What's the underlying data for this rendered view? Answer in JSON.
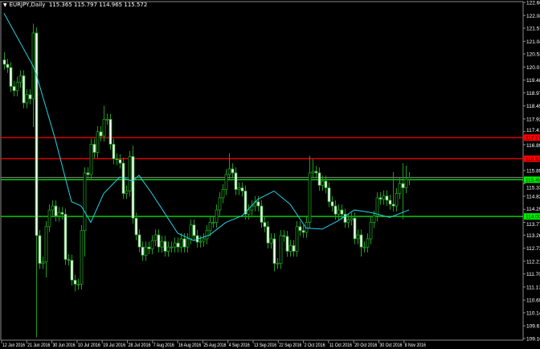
{
  "header": {
    "symbol_timeframe": "EURJPY,Daily",
    "ohlc_readout": "115.365 115.797 114.965 115.572",
    "menu_icon": "triangle-down-icon"
  },
  "colors": {
    "background": "#000000",
    "candle_outline": "#1f9a1f",
    "bull_body": "#000000",
    "bear_body": "#ffffff",
    "moving_average": "#22d3e6",
    "resistance": "#ff0000",
    "support": "#00ee00",
    "bid_line": "#9a9a9a",
    "axis_text": "#ffffff"
  },
  "chart_data": {
    "type": "candlestick",
    "title": "EURJPY,Daily",
    "ylim": [
      109.105,
      122.605
    ],
    "grid": false,
    "y_ticks": [
      "122.605",
      "122.080",
      "121.570",
      "121.045",
      "120.535",
      "120.010",
      "119.485",
      "118.975",
      "118.450",
      "117.925",
      "117.415",
      "116.890",
      "115.855",
      "115.330",
      "114.820",
      "114.295",
      "113.770",
      "113.260",
      "112.735",
      "112.210",
      "111.700",
      "111.175",
      "110.650",
      "110.140",
      "109.615",
      "109.105"
    ],
    "x_ticks": [
      "12 Jun 2016",
      "21 Jun 2016",
      "30 Jun 2016",
      "10 Jul 2016",
      "19 Jul 2016",
      "28 Jul 2016",
      "7 Aug 2016",
      "16 Aug 2016",
      "25 Aug 2016",
      "4 Sep 2016",
      "13 Sep 2016",
      "22 Sep 2016",
      "2 Oct 2016",
      "11 Oct 2016",
      "20 Oct 2016",
      "30 Oct 2016",
      "8 Nov 2016"
    ],
    "first_open": 120.3,
    "closes": [
      120.12,
      119.99,
      119.23,
      119.06,
      119.4,
      119.66,
      118.57,
      118.9,
      118.73,
      121.38,
      113.24,
      112.12,
      112.18,
      113.6,
      114.27,
      114.43,
      114.03,
      114.17,
      114.1,
      112.28,
      112.25,
      111.45,
      111.29,
      111.29,
      113.44,
      115.76,
      115.69,
      116.91,
      116.58,
      117.41,
      117.24,
      117.91,
      117.91,
      116.91,
      116.32,
      116.29,
      116.15,
      114.93,
      115.03,
      116.42,
      113.94,
      113.27,
      112.78,
      112.45,
      112.78,
      112.71,
      113.04,
      113.27,
      112.78,
      113.01,
      112.61,
      112.78,
      112.78,
      112.94,
      112.78,
      113.11,
      112.78,
      113.11,
      113.67,
      113.24,
      112.98,
      113.01,
      113.11,
      113.44,
      113.77,
      113.77,
      114.27,
      114.76,
      115.09,
      115.69,
      115.92,
      115.76,
      115.09,
      115.16,
      115.03,
      114.1,
      114.27,
      114.43,
      114.6,
      114.43,
      113.77,
      113.6,
      112.94,
      113.11,
      112.12,
      112.12,
      113.24,
      113.21,
      112.61,
      112.84,
      112.61,
      113.6,
      113.44,
      113.37,
      113.77,
      115.76,
      115.82,
      115.76,
      115.26,
      115.43,
      115.16,
      114.6,
      114.43,
      114.1,
      114.27,
      114.1,
      113.77,
      113.87,
      113.94,
      113.11,
      113.27,
      112.78,
      112.78,
      113.11,
      113.77,
      114.03,
      114.76,
      114.7,
      114.83,
      114.66,
      114.5,
      114.43,
      114.93,
      115.33,
      115.16,
      115.49,
      115.57
    ],
    "wick_extremes": {
      "0": {
        "high": 120.6
      },
      "9": {
        "high": 121.75,
        "low": 117.6
      },
      "10": {
        "low": 109.15
      },
      "13": {
        "low": 111.55
      },
      "22": {
        "low": 111.0
      },
      "25": {
        "low": 112.4
      },
      "31": {
        "high": 118.45
      },
      "40": {
        "high": 116.85
      },
      "70": {
        "high": 116.55
      },
      "84": {
        "low": 111.8
      },
      "95": {
        "high": 116.45
      },
      "96": {
        "high": 116.3
      },
      "111": {
        "low": 112.4
      },
      "121": {
        "high": 115.8
      },
      "124": {
        "high": 116.15,
        "low": 113.9
      },
      "125": {
        "high": 116.05
      }
    },
    "moving_average": {
      "points": [
        [
          0,
          122.17
        ],
        [
          9,
          120.06
        ],
        [
          10,
          119.73
        ],
        [
          16,
          117.08
        ],
        [
          21,
          114.6
        ],
        [
          24,
          114.43
        ],
        [
          27,
          113.77
        ],
        [
          31,
          114.93
        ],
        [
          36,
          115.59
        ],
        [
          40,
          115.43
        ],
        [
          42,
          115.66
        ],
        [
          46,
          114.93
        ],
        [
          51,
          113.94
        ],
        [
          54,
          113.34
        ],
        [
          59,
          113.04
        ],
        [
          64,
          113.27
        ],
        [
          69,
          113.77
        ],
        [
          74,
          114.03
        ],
        [
          79,
          114.7
        ],
        [
          84,
          115.03
        ],
        [
          89,
          114.5
        ],
        [
          94,
          113.54
        ],
        [
          99,
          113.5
        ],
        [
          104,
          113.84
        ],
        [
          109,
          114.27
        ],
        [
          114,
          114.17
        ],
        [
          120,
          113.97
        ],
        [
          126,
          114.27
        ]
      ]
    },
    "horizontal_levels": [
      {
        "label": "117.176",
        "price": 117.176,
        "kind": "resistance"
      },
      {
        "label": "116.327",
        "price": 116.327,
        "kind": "resistance"
      },
      {
        "label": "115.484",
        "price": 115.484,
        "kind": "support"
      },
      {
        "label": "114.009",
        "price": 114.009,
        "kind": "support"
      }
    ],
    "bid_price": 115.572
  }
}
